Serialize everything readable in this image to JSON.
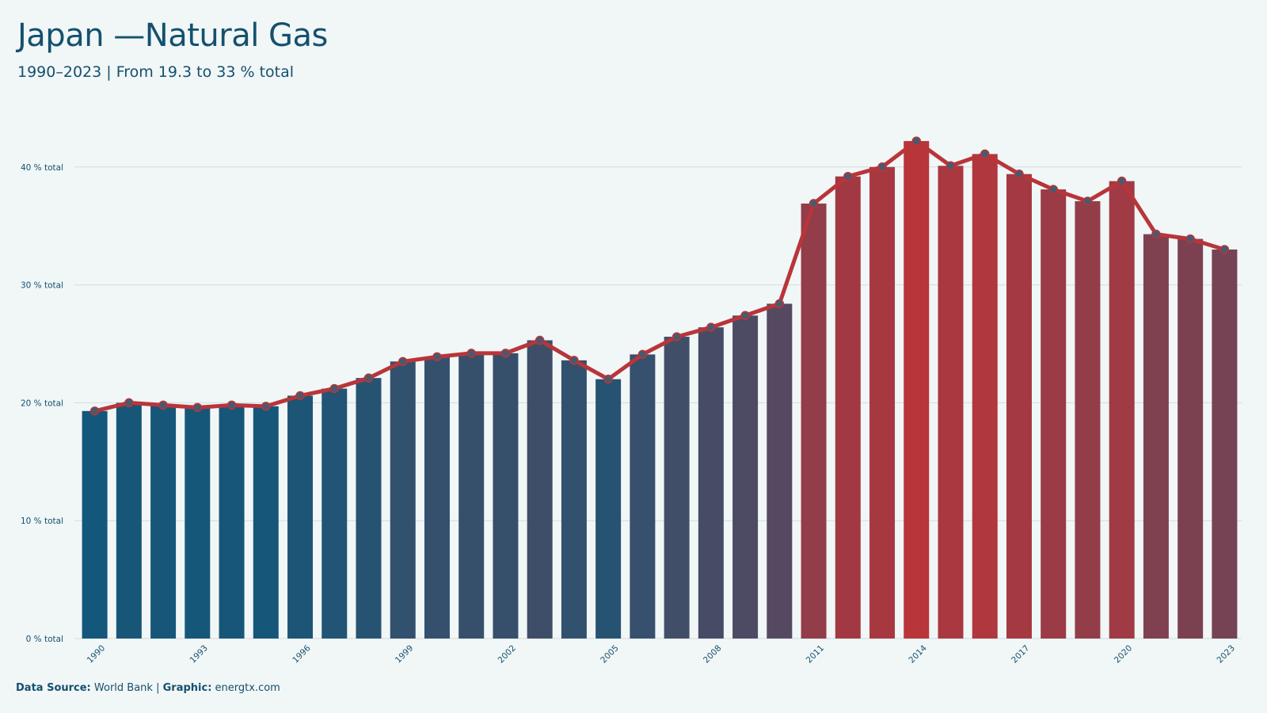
{
  "header": {
    "title": "Japan —Natural Gas",
    "subtitle": "1990–2023 | From 19.3 to 33 % total"
  },
  "footer": {
    "source_label": "Data Source:",
    "source_value": "World Bank",
    "graphic_label": "Graphic:",
    "graphic_value": "energtx.com"
  },
  "chart_data": {
    "type": "bar",
    "title": "Japan —Natural Gas",
    "subtitle": "1990–2023 | From 19.3 to 33 % total",
    "xlabel": "",
    "ylabel": "",
    "ylim": [
      0,
      45
    ],
    "y_ticks": [
      0,
      10,
      20,
      30,
      40
    ],
    "y_tick_labels": [
      "0 % total",
      "10 % total",
      "20 % total",
      "30 % total",
      "40 % total"
    ],
    "x_tick_labels": [
      "1990",
      "1993",
      "1996",
      "1999",
      "2002",
      "2005",
      "2008",
      "2011",
      "2014",
      "2017",
      "2020",
      "2023"
    ],
    "grid": "horizontal",
    "overlay": "line-with-points",
    "colors": {
      "low": "#13577a",
      "high": "#b8353a",
      "line": "#b8353a",
      "point": "#4a5a6e"
    },
    "categories": [
      "1990",
      "1991",
      "1992",
      "1993",
      "1994",
      "1995",
      "1996",
      "1997",
      "1998",
      "1999",
      "2000",
      "2001",
      "2002",
      "2003",
      "2004",
      "2005",
      "2006",
      "2007",
      "2008",
      "2009",
      "2010",
      "2011",
      "2012",
      "2013",
      "2014",
      "2015",
      "2016",
      "2017",
      "2018",
      "2019",
      "2020",
      "2021",
      "2022",
      "2023"
    ],
    "values": [
      19.3,
      20.0,
      19.8,
      19.6,
      19.8,
      19.7,
      20.6,
      21.2,
      22.1,
      23.5,
      23.9,
      24.2,
      24.2,
      25.3,
      23.6,
      22.0,
      24.1,
      25.6,
      26.4,
      27.4,
      28.4,
      36.9,
      39.2,
      40.0,
      42.2,
      40.1,
      41.1,
      39.4,
      38.1,
      37.1,
      38.8,
      34.3,
      33.9,
      33.0
    ]
  }
}
